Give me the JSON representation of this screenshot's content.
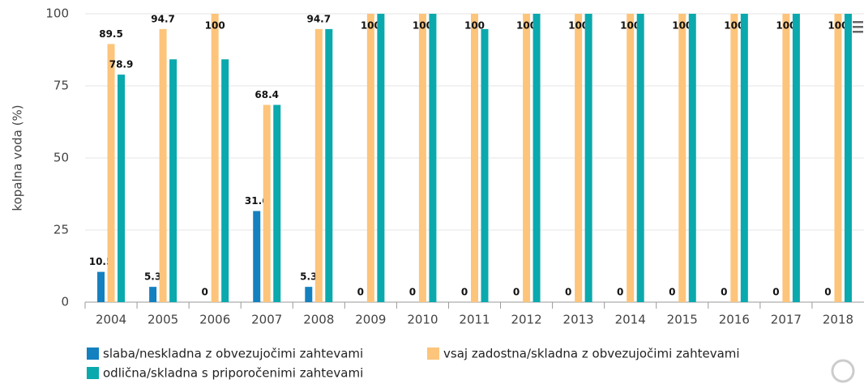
{
  "chart_data": {
    "type": "bar",
    "y_label": "kopalna voda (%)",
    "categories": [
      "2004",
      "2005",
      "2006",
      "2007",
      "2008",
      "2009",
      "2010",
      "2011",
      "2012",
      "2013",
      "2014",
      "2015",
      "2016",
      "2017",
      "2018"
    ],
    "series": [
      {
        "name": "slaba/neskladna z obvezujočimi zahtevami",
        "color": "#1380c0",
        "values": [
          10.5,
          5.3,
          0,
          31.6,
          5.3,
          0,
          0,
          0,
          0,
          0,
          0,
          0,
          0,
          0,
          0
        ],
        "value_labels": [
          "10.5",
          "5.3",
          "0",
          "31.6",
          "5.3",
          "0",
          "0",
          "0",
          "0",
          "0",
          "0",
          "0",
          "0",
          "0",
          "0"
        ]
      },
      {
        "name": "vsaj zadostna/skladna z obvezujočimi zahtevami",
        "color": "#fdc47b",
        "values": [
          89.5,
          94.7,
          100,
          68.4,
          94.7,
          100,
          100,
          100,
          100,
          100,
          100,
          100,
          100,
          100,
          100
        ],
        "value_labels": [
          "89.5",
          "94.7",
          "100",
          "68.4",
          "94.7",
          "100",
          "100",
          "100",
          "100",
          "100",
          "100",
          "100",
          "100",
          "100",
          "100"
        ]
      },
      {
        "name": "odlična/skladna s priporočenimi zahtevami",
        "color": "#0aa9ad",
        "values": [
          78.9,
          84.2,
          84.2,
          68.4,
          94.7,
          100,
          100,
          94.7,
          100,
          100,
          100,
          100,
          100,
          100,
          100
        ],
        "value_labels": [
          "78.9",
          null,
          null,
          null,
          null,
          null,
          null,
          null,
          null,
          null,
          null,
          null,
          null,
          null,
          null
        ]
      }
    ],
    "ylim": [
      0,
      100
    ],
    "yticks": [
      0,
      25,
      50,
      75,
      100
    ],
    "grid": true
  }
}
